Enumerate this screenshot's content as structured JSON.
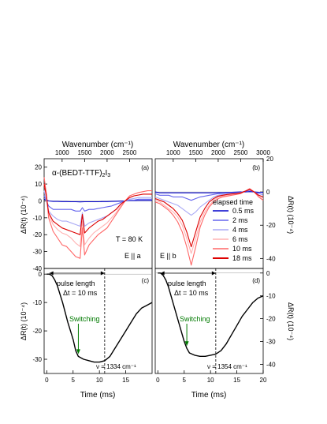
{
  "chart_data": [
    {
      "id": "a",
      "type": "line",
      "panel_label": "(a)",
      "top_axis_label": "Wavenumber (cm⁻¹)",
      "x_range": [
        600,
        3000
      ],
      "x_ticks": [
        1000,
        1500,
        2000,
        2500
      ],
      "y_range": [
        -40,
        25
      ],
      "y_ticks": [
        20,
        10,
        0,
        -10,
        -20,
        -30,
        -40
      ],
      "ylabel": "ΔR(t) (10⁻⁴)",
      "annotations": {
        "compound_prefix": "α-(BEDT-TTF)",
        "compound_sub1": "2",
        "compound_mid": "I",
        "compound_sub2": "3",
        "temperature": "T = 80 K",
        "polarization": "E || a"
      },
      "series": [
        {
          "name": "0.5 ms",
          "color": "#0000cc",
          "x": [
            600,
            650,
            700,
            800,
            900,
            1000,
            1100,
            1200,
            1300,
            1400,
            1500,
            1600,
            1700,
            1800,
            1900,
            2000,
            2100,
            2200,
            2300,
            2400,
            2500,
            2600,
            2700,
            2800,
            2900,
            3000
          ],
          "y": [
            1,
            0.5,
            0,
            -0.3,
            -0.3,
            -0.4,
            -0.4,
            -0.5,
            -0.5,
            -0.6,
            -0.5,
            -0.5,
            -0.5,
            -0.5,
            -0.4,
            -0.4,
            -0.3,
            -0.2,
            -0.1,
            0,
            0.2,
            0.2,
            0.3,
            0.3,
            0.3,
            0.3
          ]
        },
        {
          "name": "2 ms",
          "color": "#6666ee",
          "x": [
            600,
            650,
            700,
            800,
            900,
            1000,
            1100,
            1200,
            1300,
            1400,
            1450,
            1500,
            1600,
            1700,
            1800,
            1900,
            2000,
            2100,
            2200,
            2300,
            2400,
            2500,
            2600,
            2700,
            2800,
            2900,
            3000
          ],
          "y": [
            3,
            0,
            -3,
            -5,
            -5,
            -5,
            -5,
            -5,
            -6,
            -6,
            -4,
            -6,
            -5,
            -5,
            -4.5,
            -4,
            -3.5,
            -3,
            -2,
            -1,
            0,
            0.5,
            0.5,
            1,
            1,
            1,
            1
          ]
        },
        {
          "name": "4 ms",
          "color": "#aaaaf5",
          "x": [
            600,
            650,
            700,
            800,
            900,
            1000,
            1100,
            1200,
            1300,
            1400,
            1450,
            1500,
            1600,
            1700,
            1800,
            1900,
            2000,
            2100,
            2200,
            2300,
            2400,
            2500,
            2600,
            2700,
            2800,
            2900,
            3000
          ],
          "y": [
            6,
            0,
            -6,
            -9,
            -11,
            -12,
            -12,
            -13,
            -14,
            -15,
            -7,
            -15,
            -13,
            -12,
            -11,
            -10,
            -9,
            -7,
            -5,
            -2,
            0,
            1,
            1.5,
            2,
            2,
            2,
            2
          ]
        },
        {
          "name": "6 ms",
          "color": "#ffb3b3",
          "x": [
            600,
            650,
            700,
            800,
            900,
            1000,
            1100,
            1200,
            1300,
            1400,
            1450,
            1500,
            1600,
            1700,
            1800,
            1900,
            2000,
            2100,
            2200,
            2300,
            2400,
            2500,
            2600,
            2700,
            2800,
            2900,
            3000
          ],
          "y": [
            10,
            2,
            -8,
            -14,
            -17,
            -19,
            -20,
            -22,
            -25,
            -27,
            -12,
            -26,
            -22,
            -19,
            -17,
            -15,
            -13,
            -10,
            -7,
            -3,
            0,
            2,
            3,
            3.5,
            4,
            4,
            4
          ]
        },
        {
          "name": "10 ms",
          "color": "#ff6666",
          "x": [
            600,
            650,
            700,
            800,
            900,
            1000,
            1100,
            1200,
            1300,
            1400,
            1450,
            1500,
            1600,
            1700,
            1800,
            1900,
            2000,
            2100,
            2200,
            2300,
            2400,
            2500,
            2600,
            2700,
            2800,
            2900,
            3000
          ],
          "y": [
            14,
            4,
            -10,
            -18,
            -22,
            -26,
            -27,
            -30,
            -33,
            -34,
            -16,
            -32,
            -26,
            -23,
            -20,
            -18,
            -16,
            -12,
            -8,
            -4,
            0,
            3,
            4,
            5,
            5.5,
            6,
            6
          ]
        },
        {
          "name": "18 ms",
          "color": "#dd0000",
          "x": [
            600,
            650,
            700,
            800,
            900,
            1000,
            1100,
            1200,
            1300,
            1400,
            1450,
            1500,
            1600,
            1700,
            1800,
            1900,
            2000,
            2100,
            2200,
            2300,
            2400,
            2500,
            2600,
            2700,
            2800,
            2900,
            3000
          ],
          "y": [
            10,
            3,
            -7,
            -12,
            -14,
            -16,
            -17,
            -18,
            -19,
            -20,
            -8,
            -19,
            -16,
            -14,
            -12,
            -11,
            -9,
            -7,
            -5,
            -2,
            0,
            2,
            3,
            3.5,
            4,
            4,
            4
          ]
        }
      ]
    },
    {
      "id": "b",
      "type": "line",
      "panel_label": "(b)",
      "top_axis_label": "Wavenumber (cm⁻¹)",
      "x_range": [
        600,
        3000
      ],
      "x_ticks": [
        1000,
        1500,
        2000,
        2500,
        3000
      ],
      "y_range": [
        -46,
        20
      ],
      "y_ticks": [
        20,
        0,
        -20,
        -40
      ],
      "ylabel": "ΔR(t) (10⁻⁴)",
      "annotations": {
        "polarization": "E || b"
      },
      "legend": {
        "title": "elapsed time",
        "placement": "right"
      },
      "series": [
        {
          "name": "0.5 ms",
          "color": "#0000cc",
          "x": [
            600,
            700,
            800,
            900,
            1000,
            1100,
            1200,
            1300,
            1400,
            1500,
            1600,
            1700,
            1800,
            1900,
            2000,
            2100,
            2200,
            2300,
            2400,
            2500,
            2600,
            2700,
            2800,
            2900,
            3000
          ],
          "y": [
            0,
            -0.5,
            -0.5,
            -0.5,
            -0.5,
            -0.5,
            -0.5,
            -0.5,
            -0.5,
            -0.5,
            -0.5,
            -0.5,
            -0.5,
            -0.5,
            -0.4,
            -0.4,
            -0.3,
            -0.2,
            -0.1,
            0,
            0,
            0.2,
            0,
            -0.2,
            -0.2
          ]
        },
        {
          "name": "2 ms",
          "color": "#6666ee",
          "x": [
            600,
            700,
            800,
            900,
            1000,
            1100,
            1200,
            1300,
            1400,
            1500,
            1600,
            1700,
            1800,
            1900,
            2000,
            2100,
            2200,
            2300,
            2400,
            2500,
            2600,
            2700,
            2800,
            2900,
            3000
          ],
          "y": [
            -1,
            -2,
            -2,
            -2,
            -3,
            -3,
            -3,
            -4,
            -5,
            -4,
            -3,
            -2.5,
            -2,
            -1.5,
            -1,
            -0.8,
            -0.6,
            -0.5,
            -0.4,
            -0.2,
            0.5,
            1,
            0,
            -1,
            -1.5
          ]
        },
        {
          "name": "4 ms",
          "color": "#aaaaf5",
          "x": [
            600,
            700,
            800,
            900,
            1000,
            1100,
            1200,
            1300,
            1400,
            1500,
            1600,
            1700,
            1800,
            1900,
            2000,
            2100,
            2200,
            2300,
            2400,
            2500,
            2600,
            2700,
            2800,
            2900,
            3000
          ],
          "y": [
            -3,
            -4,
            -5,
            -6,
            -7,
            -8,
            -10,
            -12,
            -14,
            -12,
            -9,
            -7,
            -5,
            -3,
            -2,
            -1.5,
            -1.2,
            -1,
            -0.8,
            -0.5,
            0.5,
            1.5,
            0,
            -2,
            -3
          ]
        },
        {
          "name": "6 ms",
          "color": "#ffb3b3",
          "x": [
            600,
            700,
            800,
            900,
            1000,
            1100,
            1200,
            1300,
            1400,
            1500,
            1600,
            1700,
            1800,
            1900,
            2000,
            2100,
            2200,
            2300,
            2400,
            2500,
            2600,
            2700,
            2800,
            2900,
            3000
          ],
          "y": [
            -5,
            -6,
            -8,
            -10,
            -12,
            -15,
            -20,
            -28,
            -37,
            -28,
            -18,
            -12,
            -8,
            -5,
            -3,
            -2.5,
            -2,
            -1.5,
            -1.2,
            -0.8,
            0.5,
            2,
            0,
            -3,
            -4
          ]
        },
        {
          "name": "10 ms",
          "color": "#ff6666",
          "x": [
            600,
            700,
            800,
            900,
            1000,
            1100,
            1200,
            1300,
            1400,
            1500,
            1600,
            1700,
            1800,
            1900,
            2000,
            2100,
            2200,
            2300,
            2400,
            2500,
            2600,
            2700,
            2800,
            2900,
            3000
          ],
          "y": [
            -6,
            -7,
            -9,
            -11,
            -14,
            -18,
            -24,
            -33,
            -44,
            -33,
            -21,
            -14,
            -9,
            -6,
            -4,
            -3,
            -2.5,
            -2,
            -1.5,
            -1,
            0.5,
            2,
            0,
            -3,
            -5
          ]
        },
        {
          "name": "18 ms",
          "color": "#dd0000",
          "x": [
            600,
            700,
            800,
            900,
            1000,
            1100,
            1200,
            1300,
            1400,
            1500,
            1600,
            1700,
            1800,
            1900,
            2000,
            2100,
            2200,
            2300,
            2400,
            2500,
            2600,
            2700,
            2800,
            2900,
            3000
          ],
          "y": [
            -4,
            -5,
            -6,
            -8,
            -10,
            -13,
            -17,
            -24,
            -33,
            -24,
            -15,
            -10,
            -6,
            -4,
            -2.5,
            -2,
            -1.5,
            -1.2,
            -1,
            -0.5,
            0.5,
            1.5,
            0,
            -2,
            -3
          ]
        }
      ]
    },
    {
      "id": "c",
      "type": "line",
      "panel_label": "(c)",
      "xlabel": "Time (ms)",
      "x_range": [
        -0.5,
        20
      ],
      "x_ticks": [
        0,
        5,
        10,
        15
      ],
      "y_range": [
        -35,
        2
      ],
      "y_ticks": [
        0,
        -10,
        -20,
        -30
      ],
      "ylabel": "ΔR(t) (10⁻⁴)",
      "annotations": {
        "pulse_line1": "pulse length",
        "pulse_line2": "Δt = 10 ms",
        "switching": "Switching",
        "nu": "ν = 1334 cm⁻¹",
        "pulse_end": 11,
        "switching_at": 6
      },
      "series": [
        {
          "name": "",
          "color": "#000000",
          "x": [
            0,
            0.5,
            1,
            1.5,
            2,
            3,
            4,
            5,
            5.5,
            6,
            7,
            8,
            9,
            10,
            11,
            12,
            13,
            14,
            15,
            16,
            17,
            18,
            19,
            20
          ],
          "y": [
            0,
            0,
            -0.5,
            -2,
            -4,
            -10,
            -17,
            -23,
            -27,
            -29,
            -30,
            -30.5,
            -31,
            -31,
            -30.5,
            -29,
            -26,
            -23,
            -20,
            -17,
            -14,
            -12,
            -11,
            -10
          ]
        }
      ]
    },
    {
      "id": "d",
      "type": "line",
      "panel_label": "(d)",
      "xlabel": "Time (ms)",
      "x_range": [
        -0.5,
        20
      ],
      "x_ticks": [
        0,
        5,
        10,
        15,
        20
      ],
      "y_range": [
        -44,
        2
      ],
      "y_ticks": [
        0,
        -10,
        -20,
        -30,
        -40
      ],
      "ylabel": "ΔR(t) (10⁻⁴)",
      "annotations": {
        "pulse_line1": "pulse length",
        "pulse_line2": "Δt = 10 ms",
        "switching": "Switching",
        "nu": "ν = 1354 cm⁻¹",
        "pulse_end": 11,
        "switching_at": 5.5
      },
      "series": [
        {
          "name": "",
          "color": "#000000",
          "x": [
            0,
            0.5,
            1,
            1.5,
            2,
            3,
            4,
            5,
            5.5,
            6,
            7,
            8,
            9,
            10,
            11,
            12,
            13,
            14,
            15,
            16,
            17,
            18,
            19,
            20
          ],
          "y": [
            0,
            0,
            -1,
            -3,
            -6,
            -14,
            -22,
            -30,
            -33,
            -35,
            -36,
            -36.5,
            -36.5,
            -36,
            -35.5,
            -34,
            -31,
            -27,
            -23,
            -19,
            -16,
            -13,
            -11,
            -10
          ]
        }
      ]
    }
  ]
}
